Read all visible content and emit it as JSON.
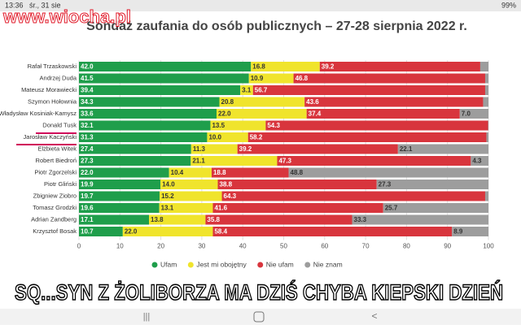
{
  "chart_data": {
    "type": "stacked-bar-horizontal",
    "title": "Sondaż zaufania do osób publicznych – 27-28 sierpnia 2022 r.",
    "categories": [
      "Rafał Trzaskowski",
      "Andrzej Duda",
      "Mateusz Morawiecki",
      "Szymon Hołownia",
      "Władysław Kosiniak-Kamysz",
      "Donald Tusk",
      "Jarosław Kaczyński",
      "Elżbieta Witek",
      "Robert Biedroń",
      "Piotr Zgorzelski",
      "Piotr Gliński",
      "Zbigniew Ziobro",
      "Tomasz Grodzki",
      "Adrian Zandberg",
      "Krzysztof Bosak"
    ],
    "series": [
      {
        "name": "Ufam",
        "color": "#1f9e4b",
        "values": [
          42.0,
          41.5,
          39.4,
          34.3,
          33.6,
          32.1,
          31.3,
          27.4,
          27.3,
          22.0,
          19.9,
          19.7,
          19.6,
          17.1,
          10.7
        ],
        "value_labels": [
          "42.0",
          "41.5",
          "39.4",
          "34.3",
          "33.6",
          "32.1",
          "31.3",
          "27.4",
          "27.3",
          "22.0",
          "19.9",
          "19.7",
          "19.6",
          "17.1",
          "10.7"
        ]
      },
      {
        "name": "Jest mi obojętny",
        "color": "#f0e42c",
        "values": [
          16.8,
          10.9,
          3.1,
          20.8,
          22.0,
          13.5,
          10.0,
          11.3,
          21.1,
          10.4,
          14.0,
          15.2,
          13.1,
          13.8,
          22.0
        ],
        "value_labels": [
          "16.8",
          "10.9",
          "3.1",
          "20.8",
          "22.0",
          "13.5",
          "10.0",
          "11.3",
          "21.1",
          "10.4",
          "14.0",
          "15.2",
          "13.1",
          "13.8",
          "22.0"
        ]
      },
      {
        "name": "Nie ufam",
        "color": "#d8353d",
        "values": [
          39.2,
          46.8,
          56.7,
          43.6,
          37.4,
          54.3,
          58.2,
          39.2,
          47.3,
          18.8,
          38.8,
          64.3,
          41.6,
          35.8,
          58.4
        ],
        "value_labels": [
          "39.2",
          "46.8",
          "56.7",
          "43.6",
          "37.4",
          "54.3",
          "58.2",
          "39.2",
          "47.3",
          "18.8",
          "38.8",
          "64.3",
          "41.6",
          "35.8",
          "58.4"
        ]
      },
      {
        "name": "Nie znam",
        "color": "#9d9d9d",
        "values": [
          2.0,
          0.8,
          0.8,
          1.3,
          7.0,
          0.1,
          0.5,
          22.1,
          4.3,
          48.8,
          27.3,
          0.8,
          25.7,
          33.3,
          8.9
        ],
        "value_labels": [
          null,
          null,
          null,
          null,
          "7.0",
          null,
          null,
          "22.1",
          "4.3",
          "48.8",
          "27.3",
          null,
          "25.7",
          "33.3",
          "8.9"
        ]
      }
    ],
    "xlim": [
      0,
      100
    ],
    "xticks": [
      0,
      10,
      20,
      30,
      40,
      50,
      60,
      70,
      80,
      90,
      100
    ],
    "grid": true,
    "legend": "bottom"
  },
  "overlay": {
    "status_time": "13:36",
    "status_date": "śr., 31 sie",
    "battery": "99%",
    "watermark": "www.wiocha.pl",
    "caption": "SQ...SYN Z ŻOLIBORZA MA DZIŚ CHYBA KIEPSKI DZIEŃ"
  }
}
